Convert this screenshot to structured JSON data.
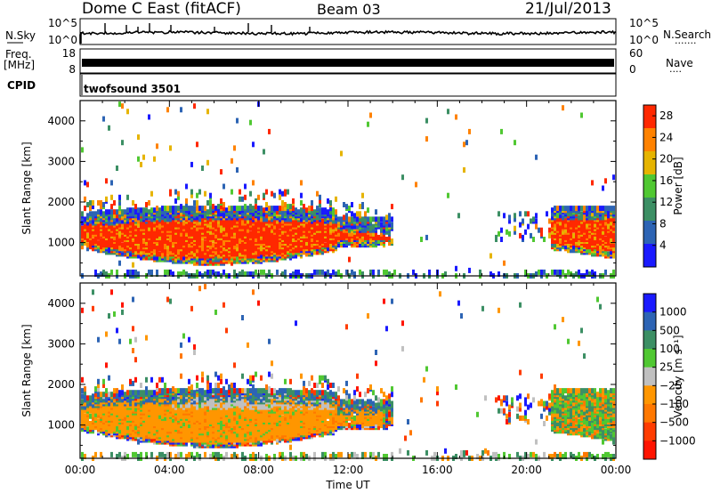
{
  "header": {
    "station": "Dome C East (fitACF)",
    "beam": "Beam 03",
    "date": "21/Jul/2013"
  },
  "strip_labels": {
    "nsky": "N.Sky",
    "nsearch": "N.Search",
    "freq_top": "Freq.",
    "freq_unit": "[MHz]",
    "nave": "Nave",
    "cpid": "CPID",
    "cpid_value": "twofsound 3501",
    "nsearch_dots": "·······",
    "nave_dots": "····",
    "noise_left_ticks": [
      "10^5",
      "10^0"
    ],
    "noise_right_ticks": [
      "10^5",
      "10^0"
    ],
    "freq_left_ticks": [
      "18",
      "8"
    ],
    "freq_right_ticks": [
      "60",
      "0"
    ]
  },
  "chart_data": [
    {
      "type": "heatmap",
      "panel": "power",
      "ylabel": "Slant Range [km]",
      "ylim": [
        180,
        4500
      ],
      "y_ticks": [
        1000,
        2000,
        3000,
        4000
      ],
      "xlim": [
        "00:00",
        "24:00"
      ],
      "colorbar": {
        "label": "Power [dB]",
        "ticks": [
          4,
          8,
          12,
          16,
          20,
          24,
          28
        ],
        "range": [
          0,
          30
        ],
        "colors": [
          "#1a1aff",
          "#2d64b4",
          "#3c8f64",
          "#50c832",
          "#e6b400",
          "#ff8200",
          "#ff2800"
        ]
      },
      "regions": [
        {
          "t_start": "00:00",
          "t_end": "14:00",
          "range_km": [
            700,
            2100
          ],
          "dominant": "high power (red/orange)"
        },
        {
          "t_start": "14:00",
          "t_end": "21:00",
          "range_km": [
            200,
            400
          ],
          "dominant": "sparse low power"
        },
        {
          "t_start": "21:00",
          "t_end": "24:00",
          "range_km": [
            600,
            2000
          ],
          "dominant": "high power (red)"
        }
      ]
    },
    {
      "type": "heatmap",
      "panel": "velocity",
      "ylabel": "Slant Range [km]",
      "xlabel": "Time UT",
      "ylim": [
        180,
        4500
      ],
      "y_ticks": [
        1000,
        2000,
        3000,
        4000
      ],
      "x_ticks": [
        "00:00",
        "04:00",
        "08:00",
        "12:00",
        "16:00",
        "20:00",
        "00:00"
      ],
      "colorbar": {
        "label": "Velocity [m s⁻¹]",
        "ticks": [
          "1000",
          "500",
          "100",
          "25",
          "−25",
          "−100",
          "−500",
          "−1000"
        ],
        "colors": [
          "#1a1aff",
          "#2d64b4",
          "#3c8f64",
          "#50c832",
          "#c0c0c0",
          "#ff9600",
          "#ff7800",
          "#ff3c00",
          "#ff1400"
        ]
      },
      "regions": [
        {
          "t_start": "00:00",
          "t_end": "14:00",
          "range_km": [
            500,
            2100
          ],
          "dominant": "-100 to -500 m/s (orange)"
        },
        {
          "t_start": "04:00",
          "t_end": "12:00",
          "range_km": [
            1500,
            2000
          ],
          "dominant": "~0 m/s (grey)"
        },
        {
          "t_start": "21:00",
          "t_end": "24:00",
          "range_km": [
            600,
            2000
          ],
          "dominant": "mixed green/orange"
        }
      ]
    }
  ]
}
